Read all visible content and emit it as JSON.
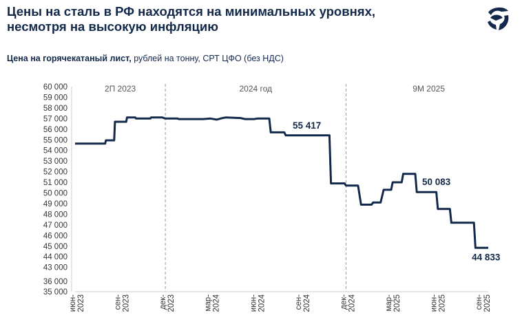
{
  "header": {
    "title_line1": "Цены на сталь в РФ находятся на минимальных уровнях,",
    "title_line2": "несмотря на высокую инфляцию",
    "subtitle_bold": "Цена на горячекатаный лист,",
    "subtitle_rest": " рублей на тонну, СРТ ЦФО (без НДС)"
  },
  "logo": {
    "icon": "company-logo-icon",
    "color": "#13294b"
  },
  "chart_data": {
    "type": "line",
    "title": "Цена на горячекатаный лист, рублей на тонну, СРТ ЦФО (без НДС)",
    "xlabel": "",
    "ylabel": "",
    "line_color": "#13294b",
    "y_ticks": [
      "60 000",
      "59 000",
      "58 000",
      "57 000",
      "56 000",
      "55 000",
      "54 000",
      "53 000",
      "52 000",
      "51 000",
      "50 000",
      "49 000",
      "48 000",
      "47 000",
      "46 000",
      "45 000",
      "44 000",
      "43 000",
      "36 000",
      "35 000"
    ],
    "x_ticks": [
      {
        "line1": "июн-",
        "line2": "2023",
        "t": 0
      },
      {
        "line1": "сен-",
        "line2": "2023",
        "t": 3
      },
      {
        "line1": "дек-",
        "line2": "2023",
        "t": 6
      },
      {
        "line1": "мар-",
        "line2": "2024",
        "t": 9
      },
      {
        "line1": "июн-",
        "line2": "2024",
        "t": 12
      },
      {
        "line1": "сен-",
        "line2": "2024",
        "t": 15
      },
      {
        "line1": "дек-",
        "line2": "2024",
        "t": 18
      },
      {
        "line1": "мар-",
        "line2": "2025",
        "t": 21
      },
      {
        "line1": "июн-",
        "line2": "2025",
        "t": 24
      },
      {
        "line1": "сен-",
        "line2": "2025",
        "t": 27
      }
    ],
    "periods": [
      {
        "label": "2П 2023",
        "center_t": 3
      },
      {
        "label": "2024 год",
        "center_t": 12
      },
      {
        "label": "9М 2025",
        "center_t": 23.5
      }
    ],
    "period_dividers_t": [
      6,
      18
    ],
    "series": [
      {
        "name": "Цена на горячекатаный лист",
        "x": [
          0,
          2,
          2.05,
          2.6,
          2.65,
          3.4,
          3.45,
          4.0,
          4.05,
          5.0,
          5.05,
          5.8,
          6.0,
          6.8,
          6.9,
          7.5,
          8.5,
          9.0,
          9.4,
          9.8,
          10.0,
          11.0,
          11.3,
          11.9,
          12.1,
          12.9,
          13.0,
          13.9,
          14.0,
          15.0,
          16.0,
          16.9,
          17.0,
          17.9,
          18.0,
          18.8,
          19.0,
          19.7,
          19.8,
          20.3,
          20.5,
          21.0,
          21.1,
          21.7,
          21.8,
          22.6,
          22.7,
          23.3,
          23.4,
          24.0,
          24.1,
          24.9,
          25.0,
          25.7,
          25.8,
          26.5,
          26.6,
          27.3,
          27.45
        ],
        "y": [
          54650,
          54650,
          54950,
          54950,
          56700,
          56700,
          57100,
          57100,
          57000,
          57000,
          57100,
          57100,
          57000,
          57000,
          56950,
          56950,
          56950,
          57000,
          56900,
          57050,
          57100,
          57050,
          56950,
          56950,
          57000,
          57000,
          55700,
          55700,
          55417,
          55417,
          55417,
          55417,
          50900,
          50900,
          50700,
          50700,
          48900,
          48900,
          49100,
          49100,
          50300,
          50300,
          51000,
          51000,
          51800,
          51800,
          50083,
          50083,
          50083,
          50083,
          48500,
          48500,
          47200,
          47200,
          47200,
          47200,
          44833,
          44833,
          44833
        ]
      }
    ],
    "data_labels": [
      {
        "text": "55 417",
        "x": 15.4,
        "y": 55417,
        "pos": "above"
      },
      {
        "text": "50 083",
        "x": 24.0,
        "y": 50083,
        "pos": "above"
      },
      {
        "text": "44 833",
        "x": 27.3,
        "y": 44833,
        "pos": "below"
      }
    ]
  }
}
